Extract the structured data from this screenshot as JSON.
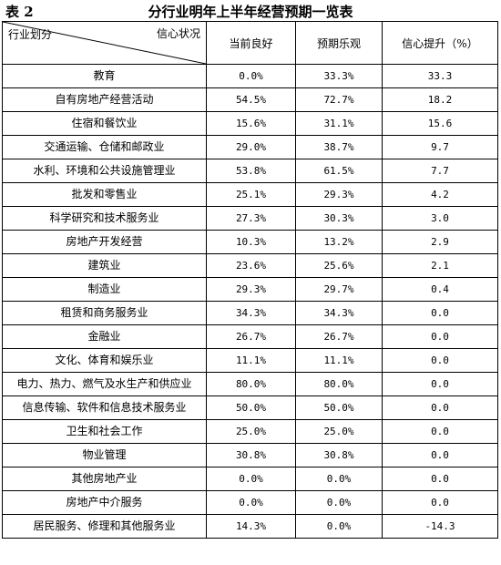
{
  "table_label": "表 2",
  "title": "分行业明年上半年经营预期一览表",
  "header": {
    "row_label": "行业划分",
    "col_label": "信心状况",
    "current_good": "当前良好",
    "expected_optimistic": "预期乐观",
    "confidence_up": "信心提升（%）"
  },
  "rows": [
    {
      "industry": "教育",
      "current": "0.0%",
      "expected": "33.3%",
      "up": "33.3"
    },
    {
      "industry": "自有房地产经营活动",
      "current": "54.5%",
      "expected": "72.7%",
      "up": "18.2"
    },
    {
      "industry": "住宿和餐饮业",
      "current": "15.6%",
      "expected": "31.1%",
      "up": "15.6"
    },
    {
      "industry": "交通运输、仓储和邮政业",
      "current": "29.0%",
      "expected": "38.7%",
      "up": "9.7"
    },
    {
      "industry": "水利、环境和公共设施管理业",
      "current": "53.8%",
      "expected": "61.5%",
      "up": "7.7"
    },
    {
      "industry": "批发和零售业",
      "current": "25.1%",
      "expected": "29.3%",
      "up": "4.2"
    },
    {
      "industry": "科学研究和技术服务业",
      "current": "27.3%",
      "expected": "30.3%",
      "up": "3.0"
    },
    {
      "industry": "房地产开发经营",
      "current": "10.3%",
      "expected": "13.2%",
      "up": "2.9"
    },
    {
      "industry": "建筑业",
      "current": "23.6%",
      "expected": "25.6%",
      "up": "2.1"
    },
    {
      "industry": "制造业",
      "current": "29.3%",
      "expected": "29.7%",
      "up": "0.4"
    },
    {
      "industry": "租赁和商务服务业",
      "current": "34.3%",
      "expected": "34.3%",
      "up": "0.0"
    },
    {
      "industry": "金融业",
      "current": "26.7%",
      "expected": "26.7%",
      "up": "0.0"
    },
    {
      "industry": "文化、体育和娱乐业",
      "current": "11.1%",
      "expected": "11.1%",
      "up": "0.0"
    },
    {
      "industry": "电力、热力、燃气及水生产和供应业",
      "current": "80.0%",
      "expected": "80.0%",
      "up": "0.0"
    },
    {
      "industry": "信息传输、软件和信息技术服务业",
      "current": "50.0%",
      "expected": "50.0%",
      "up": "0.0"
    },
    {
      "industry": "卫生和社会工作",
      "current": "25.0%",
      "expected": "25.0%",
      "up": "0.0"
    },
    {
      "industry": "物业管理",
      "current": "30.8%",
      "expected": "30.8%",
      "up": "0.0"
    },
    {
      "industry": "其他房地产业",
      "current": "0.0%",
      "expected": "0.0%",
      "up": "0.0"
    },
    {
      "industry": "房地产中介服务",
      "current": "0.0%",
      "expected": "0.0%",
      "up": "0.0"
    },
    {
      "industry": "居民服务、修理和其他服务业",
      "current": "14.3%",
      "expected": "0.0%",
      "up": "-14.3"
    }
  ]
}
